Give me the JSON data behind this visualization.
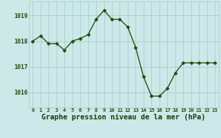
{
  "x": [
    0,
    1,
    2,
    3,
    4,
    5,
    6,
    7,
    8,
    9,
    10,
    11,
    12,
    13,
    14,
    15,
    16,
    17,
    18,
    19,
    20,
    21,
    22,
    23
  ],
  "y": [
    1018.0,
    1018.2,
    1017.9,
    1017.9,
    1017.65,
    1018.0,
    1018.1,
    1018.25,
    1018.85,
    1019.2,
    1018.85,
    1018.85,
    1018.55,
    1017.75,
    1016.6,
    1015.85,
    1015.85,
    1016.15,
    1016.75,
    1017.15,
    1017.15,
    1017.15,
    1017.15,
    1017.15
  ],
  "line_color": "#1e4d0f",
  "marker": "D",
  "marker_size": 2.5,
  "bg_color": "#cce8e8",
  "grid_color": "#aacccc",
  "xlabel": "Graphe pression niveau de la mer (hPa)",
  "xlabel_color": "#1a3a0a",
  "xlabel_fontsize": 7.5,
  "ytick_labels": [
    "1016",
    "1017",
    "1018",
    "1019"
  ],
  "ytick_values": [
    1016,
    1017,
    1018,
    1019
  ],
  "ylim": [
    1015.4,
    1019.55
  ],
  "xlim": [
    -0.5,
    23.5
  ],
  "tick_color": "#1e4d0f",
  "tick_fontsize": 5.2,
  "ytick_fontsize": 6.0,
  "linewidth": 1.0
}
